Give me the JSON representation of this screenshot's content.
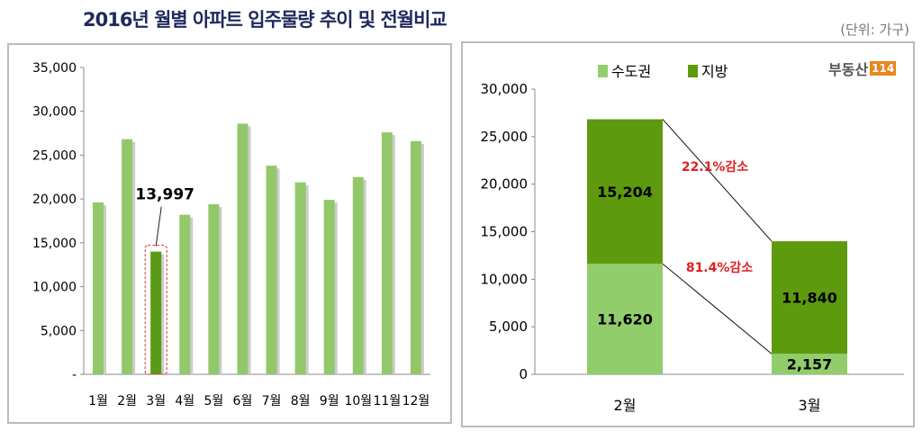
{
  "title": "2016년 월별 아파트 입주물량 추이 및 전월비교",
  "unit": "(단위: 가구)",
  "logo": {
    "text": "부동산",
    "num": "114"
  },
  "chart_data": [
    {
      "type": "bar",
      "categories": [
        "1월",
        "2월",
        "3월",
        "4월",
        "5월",
        "6월",
        "7월",
        "8월",
        "9월",
        "10월",
        "11월",
        "12월"
      ],
      "values": [
        19600,
        26824,
        13997,
        18200,
        19400,
        28600,
        23800,
        21900,
        19900,
        22500,
        27600,
        26600
      ],
      "highlight": {
        "index": 2,
        "label": "13,997"
      },
      "yticks": [
        "-",
        "5,000",
        "10,000",
        "15,000",
        "20,000",
        "25,000",
        "30,000",
        "35,000"
      ],
      "ylim": [
        0,
        35000
      ],
      "colors": {
        "bar": "#92c86a",
        "highlight": "#5a9a14",
        "box": "#e03030"
      }
    },
    {
      "type": "stacked-bar",
      "categories": [
        "2월",
        "3월"
      ],
      "series": [
        {
          "name": "수도권",
          "values": [
            11620,
            2157
          ],
          "labels": [
            "11,620",
            "2,157"
          ],
          "color": "#92cd6c"
        },
        {
          "name": "지방",
          "values": [
            15204,
            11840
          ],
          "labels": [
            "15,204",
            "11,840"
          ],
          "color": "#5e9a0e"
        }
      ],
      "yticks": [
        "0",
        "5,000",
        "10,000",
        "15,000",
        "20,000",
        "25,000",
        "30,000"
      ],
      "ylim": [
        0,
        30000
      ],
      "annotations": [
        {
          "text": "22.1%감소",
          "series": "지방"
        },
        {
          "text": "81.4%감소",
          "series": "수도권"
        }
      ],
      "annotation_color": "#e02020",
      "legend": "top"
    }
  ]
}
